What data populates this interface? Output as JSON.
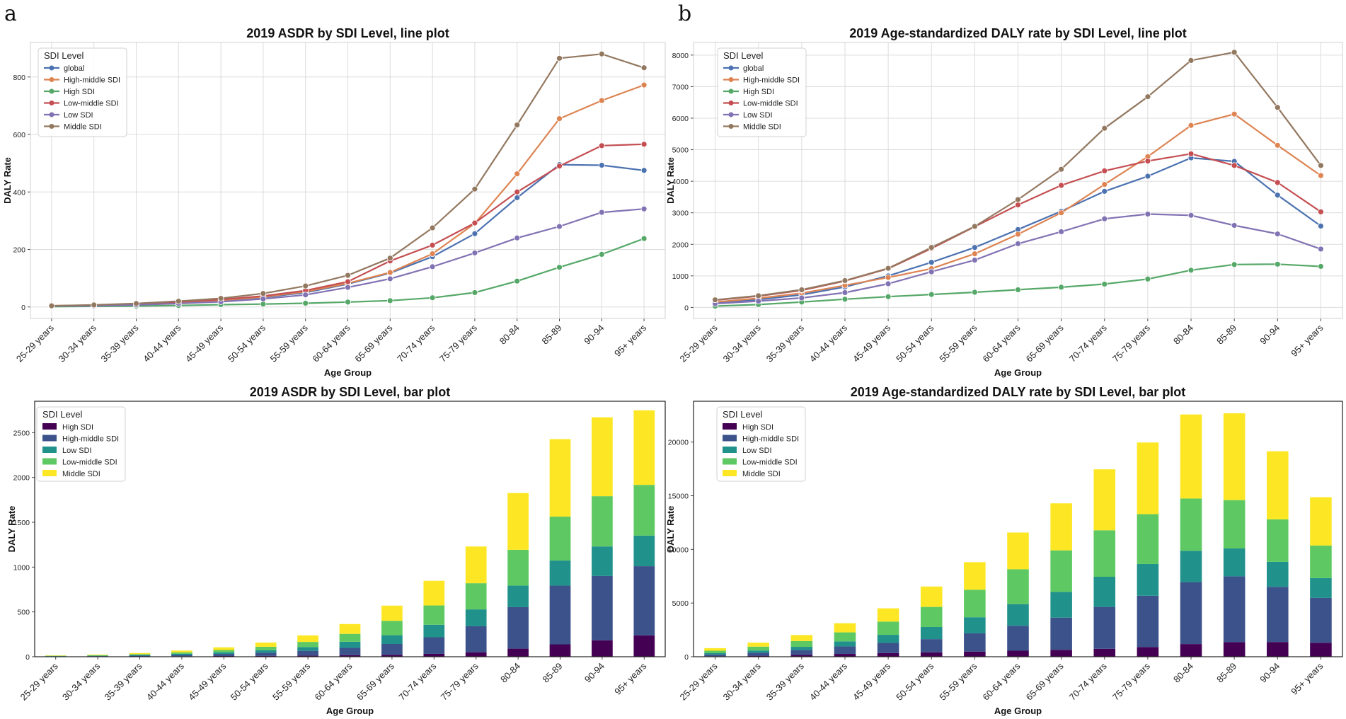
{
  "panel_letters": {
    "a": "a",
    "b": "b"
  },
  "chart_data": [
    {
      "id": "asdr-line",
      "type": "line",
      "title": "2019 ASDR by SDI Level, line plot",
      "xlabel": "Age Group",
      "ylabel": "DALY Rate",
      "ylim": [
        -40,
        920
      ],
      "yticks": [
        0,
        200,
        400,
        600,
        800
      ],
      "grid": true,
      "legend_title": "SDI Level",
      "legend_position": "top-left",
      "categories": [
        "25-29 years",
        "30-34 years",
        "35-39 years",
        "40-44 years",
        "45-49 years",
        "50-54 years",
        "55-59 years",
        "60-64 years",
        "65-69 years",
        "70-74 years",
        "75-79 years",
        "80-84",
        "85-89",
        "90-94",
        "95+ years"
      ],
      "series": [
        {
          "name": "global",
          "color": "#4c72b0",
          "values": [
            3,
            5,
            9,
            15,
            22,
            33,
            50,
            80,
            118,
            175,
            255,
            380,
            495,
            493,
            475
          ]
        },
        {
          "name": "High-middle SDI",
          "color": "#dd8452",
          "values": [
            3,
            5,
            9,
            15,
            23,
            35,
            53,
            82,
            120,
            185,
            290,
            463,
            655,
            718,
            772
          ]
        },
        {
          "name": "High SDI",
          "color": "#55a868",
          "values": [
            1,
            2,
            3,
            5,
            8,
            10,
            13,
            17,
            22,
            32,
            50,
            90,
            138,
            183,
            238
          ]
        },
        {
          "name": "Low-middle SDI",
          "color": "#c44e52",
          "values": [
            4,
            6,
            10,
            17,
            26,
            38,
            57,
            88,
            160,
            215,
            292,
            400,
            490,
            561,
            566
          ]
        },
        {
          "name": "Low SDI",
          "color": "#8172b3",
          "values": [
            3,
            4,
            7,
            12,
            18,
            28,
            42,
            68,
            98,
            140,
            188,
            240,
            280,
            329,
            341
          ]
        },
        {
          "name": "Middle SDI",
          "color": "#937860",
          "values": [
            4,
            7,
            12,
            20,
            30,
            47,
            73,
            110,
            170,
            275,
            410,
            633,
            865,
            880,
            832
          ]
        }
      ]
    },
    {
      "id": "daly-line",
      "type": "line",
      "title": "2019 Age-standardized DALY rate by SDI Level, line plot",
      "xlabel": "Age Group",
      "ylabel": "DALY Rate",
      "ylim": [
        -350,
        8400
      ],
      "yticks": [
        0,
        1000,
        2000,
        3000,
        4000,
        5000,
        6000,
        7000,
        8000
      ],
      "grid": true,
      "legend_title": "SDI Level",
      "legend_position": "top-left",
      "categories": [
        "25-29 years",
        "30-34 years",
        "35-39 years",
        "40-44 years",
        "45-49 years",
        "50-54 years",
        "55-59 years",
        "60-64 years",
        "65-69 years",
        "70-74 years",
        "75-79 years",
        "80-84",
        "85-89",
        "90-94",
        "95+ years"
      ],
      "series": [
        {
          "name": "global",
          "color": "#4c72b0",
          "values": [
            150,
            250,
            400,
            650,
            1000,
            1430,
            1900,
            2470,
            3050,
            3680,
            4160,
            4740,
            4630,
            3560,
            2580
          ]
        },
        {
          "name": "High-middle SDI",
          "color": "#dd8452",
          "values": [
            170,
            290,
            450,
            700,
            950,
            1230,
            1700,
            2320,
            3000,
            3900,
            4780,
            5770,
            6130,
            5140,
            4180
          ]
        },
        {
          "name": "High SDI",
          "color": "#55a868",
          "values": [
            40,
            90,
            170,
            260,
            340,
            410,
            480,
            560,
            640,
            740,
            900,
            1180,
            1360,
            1370,
            1300
          ]
        },
        {
          "name": "Low-middle SDI",
          "color": "#c44e52",
          "values": [
            230,
            360,
            540,
            840,
            1230,
            1870,
            2560,
            3250,
            3870,
            4330,
            4640,
            4870,
            4500,
            3960,
            3030
          ]
        },
        {
          "name": "Low SDI",
          "color": "#8172b3",
          "values": [
            120,
            200,
            300,
            470,
            750,
            1130,
            1500,
            2020,
            2400,
            2810,
            2960,
            2920,
            2600,
            2330,
            1850
          ]
        },
        {
          "name": "Middle SDI",
          "color": "#937860",
          "values": [
            240,
            370,
            560,
            850,
            1240,
            1900,
            2570,
            3420,
            4380,
            5680,
            6680,
            7830,
            8090,
            6340,
            4500
          ]
        }
      ]
    },
    {
      "id": "asdr-bar",
      "type": "bar",
      "stacked": true,
      "title": "2019 ASDR by SDI Level, bar plot",
      "xlabel": "Age Group",
      "ylabel": "DALY Rate",
      "ylim": [
        0,
        2850
      ],
      "yticks": [
        0,
        500,
        1000,
        1500,
        2000,
        2500
      ],
      "grid": false,
      "legend_title": "SDI Level",
      "legend_position": "top-left",
      "categories": [
        "25-29 years",
        "30-34 years",
        "35-39 years",
        "40-44 years",
        "45-49 years",
        "50-54 years",
        "55-59 years",
        "60-64 years",
        "65-69 years",
        "70-74 years",
        "75-79 years",
        "80-84",
        "85-89",
        "90-94",
        "95+ years"
      ],
      "series": [
        {
          "name": "High SDI",
          "color": "#440154",
          "values": [
            1,
            2,
            3,
            5,
            8,
            10,
            13,
            17,
            22,
            32,
            50,
            90,
            138,
            183,
            238
          ]
        },
        {
          "name": "High-middle SDI",
          "color": "#3b528b",
          "values": [
            3,
            5,
            9,
            15,
            23,
            35,
            53,
            82,
            120,
            185,
            290,
            463,
            655,
            718,
            772
          ]
        },
        {
          "name": "Low SDI",
          "color": "#21918c",
          "values": [
            3,
            4,
            7,
            12,
            18,
            28,
            42,
            68,
            98,
            140,
            188,
            240,
            280,
            329,
            341
          ]
        },
        {
          "name": "Low-middle SDI",
          "color": "#5ec962",
          "values": [
            4,
            6,
            10,
            17,
            26,
            38,
            57,
            88,
            160,
            215,
            292,
            400,
            490,
            561,
            566
          ]
        },
        {
          "name": "Middle SDI",
          "color": "#fde725",
          "values": [
            4,
            7,
            12,
            20,
            30,
            47,
            73,
            110,
            170,
            275,
            410,
            633,
            865,
            880,
            832
          ]
        }
      ]
    },
    {
      "id": "daly-bar",
      "type": "bar",
      "stacked": true,
      "title": "2019 Age-standardized DALY rate by SDI Level, bar plot",
      "xlabel": "Age Group",
      "ylabel": "DALY Rate",
      "ylim": [
        0,
        23800
      ],
      "yticks": [
        0,
        5000,
        10000,
        15000,
        20000
      ],
      "grid": false,
      "legend_title": "SDI Level",
      "legend_position": "top-left",
      "categories": [
        "25-29 years",
        "30-34 years",
        "35-39 years",
        "40-44 years",
        "45-49 years",
        "50-54 years",
        "55-59 years",
        "60-64 years",
        "65-69 years",
        "70-74 years",
        "75-79 years",
        "80-84",
        "85-89",
        "90-94",
        "95+ years"
      ],
      "series": [
        {
          "name": "High SDI",
          "color": "#440154",
          "values": [
            40,
            90,
            170,
            260,
            340,
            410,
            480,
            560,
            640,
            740,
            900,
            1180,
            1360,
            1370,
            1300
          ]
        },
        {
          "name": "High-middle SDI",
          "color": "#3b528b",
          "values": [
            170,
            290,
            450,
            700,
            950,
            1230,
            1700,
            2320,
            3000,
            3900,
            4780,
            5770,
            6130,
            5140,
            4180
          ]
        },
        {
          "name": "Low SDI",
          "color": "#21918c",
          "values": [
            120,
            200,
            300,
            470,
            750,
            1130,
            1500,
            2020,
            2400,
            2810,
            2960,
            2920,
            2600,
            2330,
            1850
          ]
        },
        {
          "name": "Low-middle SDI",
          "color": "#5ec962",
          "values": [
            230,
            360,
            540,
            840,
            1230,
            1870,
            2560,
            3250,
            3870,
            4330,
            4640,
            4870,
            4500,
            3960,
            3030
          ]
        },
        {
          "name": "Middle SDI",
          "color": "#fde725",
          "values": [
            240,
            370,
            560,
            850,
            1240,
            1900,
            2570,
            3420,
            4380,
            5680,
            6680,
            7830,
            8090,
            6340,
            4500
          ]
        }
      ]
    }
  ]
}
